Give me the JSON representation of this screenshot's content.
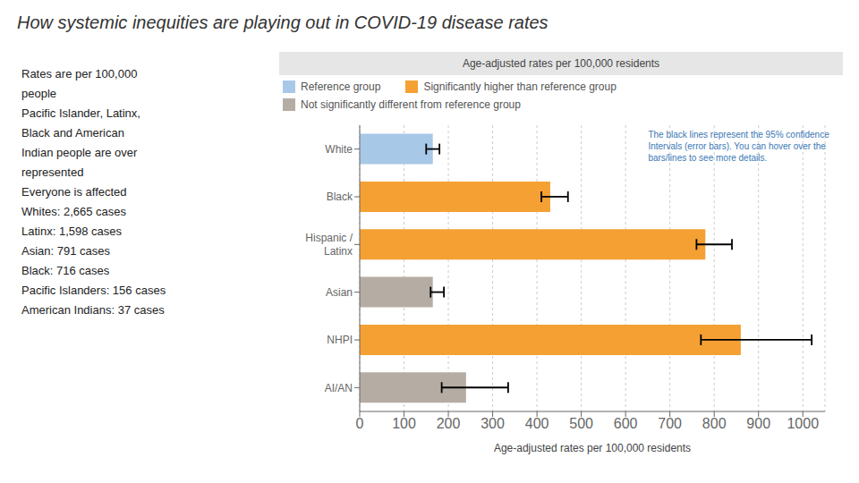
{
  "chart_data": {
    "type": "bar",
    "orientation": "horizontal",
    "title": "How systemic inequities are playing out in COVID-19 disease rates",
    "subtitle": "Age-adjusted rates per 100,000 residents",
    "xlabel": "Age-adjusted rates per 100,000 residents",
    "annotations": [
      "Rates are per 100,000",
      "people",
      "Pacific Islander, Latinx,",
      "Black and American",
      "Indian people are over",
      "represented",
      "Everyone is affected",
      "Whites: 2,665 cases",
      "Latinx: 1,598 cases",
      "Asian: 791 cases",
      "Black: 716 cases",
      "Pacific Islanders: 156 cases",
      "American Indians: 37 cases",
      "The black lines represent the 95% confidence\nIntervals (error bars). You can hover over the\nbars/lines to see more details."
    ],
    "categories": [
      "White",
      "Black",
      "Hispanic /\nLatinx",
      "Asian",
      "NHPI",
      "AI/AN"
    ],
    "series": [
      {
        "name": "Reference group",
        "color": "#a8c8e8",
        "values": [
          165,
          null,
          null,
          null,
          null,
          null
        ]
      },
      {
        "name": "Significantly higher than reference group",
        "color": "#f5a033",
        "values": [
          null,
          430,
          780,
          null,
          860,
          null
        ]
      },
      {
        "name": "Not significantly different from reference group",
        "color": "#b5ada3",
        "values": [
          null,
          null,
          null,
          165,
          null,
          240
        ]
      }
    ],
    "error_centers": [
      165,
      430,
      790,
      175,
      820,
      215
    ],
    "error_minus": [
      15,
      20,
      30,
      15,
      50,
      30
    ],
    "error_plus": [
      15,
      40,
      50,
      15,
      200,
      120
    ],
    "xlim": [
      0,
      1050
    ],
    "xticks": [
      0,
      100,
      200,
      300,
      400,
      500,
      600,
      700,
      800,
      900,
      1000
    ],
    "grid": true,
    "legend": "top"
  }
}
